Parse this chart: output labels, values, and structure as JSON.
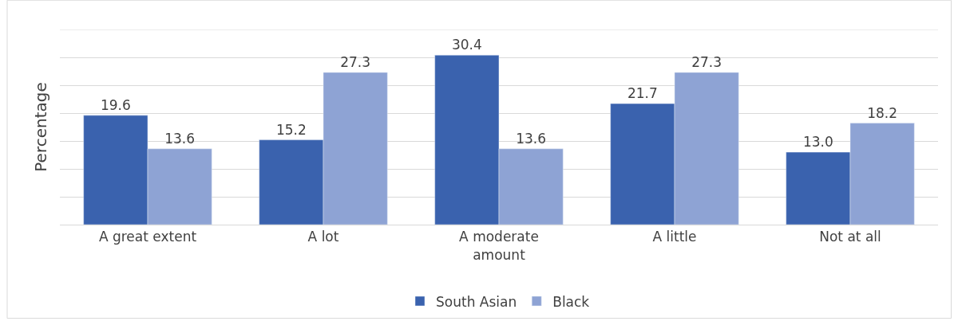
{
  "chart_data": {
    "type": "bar",
    "ylabel": "Percentage",
    "categories": [
      "A great extent",
      "A lot",
      "A moderate amount",
      "A little",
      "Not at all"
    ],
    "series": [
      {
        "name": "South Asian",
        "color": "#3a62ae",
        "values": [
          19.6,
          15.2,
          30.4,
          21.7,
          13.0
        ],
        "value_labels": [
          "19.6",
          "15.2",
          "30.4",
          "21.7",
          "13.0"
        ]
      },
      {
        "name": "Black",
        "color": "#8ea3d4",
        "values": [
          13.6,
          27.3,
          13.6,
          27.3,
          18.2
        ],
        "value_labels": [
          "13.6",
          "27.3",
          "13.6",
          "27.3",
          "18.2"
        ]
      }
    ],
    "ylim": [
      0,
      35
    ],
    "yticks": [
      {
        "value": 0,
        "label": null
      },
      {
        "value": 5,
        "label": null
      },
      {
        "value": 10,
        "label": null
      },
      {
        "value": 15,
        "label": null
      },
      {
        "value": 20,
        "label": null
      },
      {
        "value": 25,
        "label": null
      },
      {
        "value": 30,
        "label": null
      },
      {
        "value": 35,
        "label": null
      }
    ],
    "grid": "y",
    "legend": "bottom",
    "tick_labels": "x"
  }
}
